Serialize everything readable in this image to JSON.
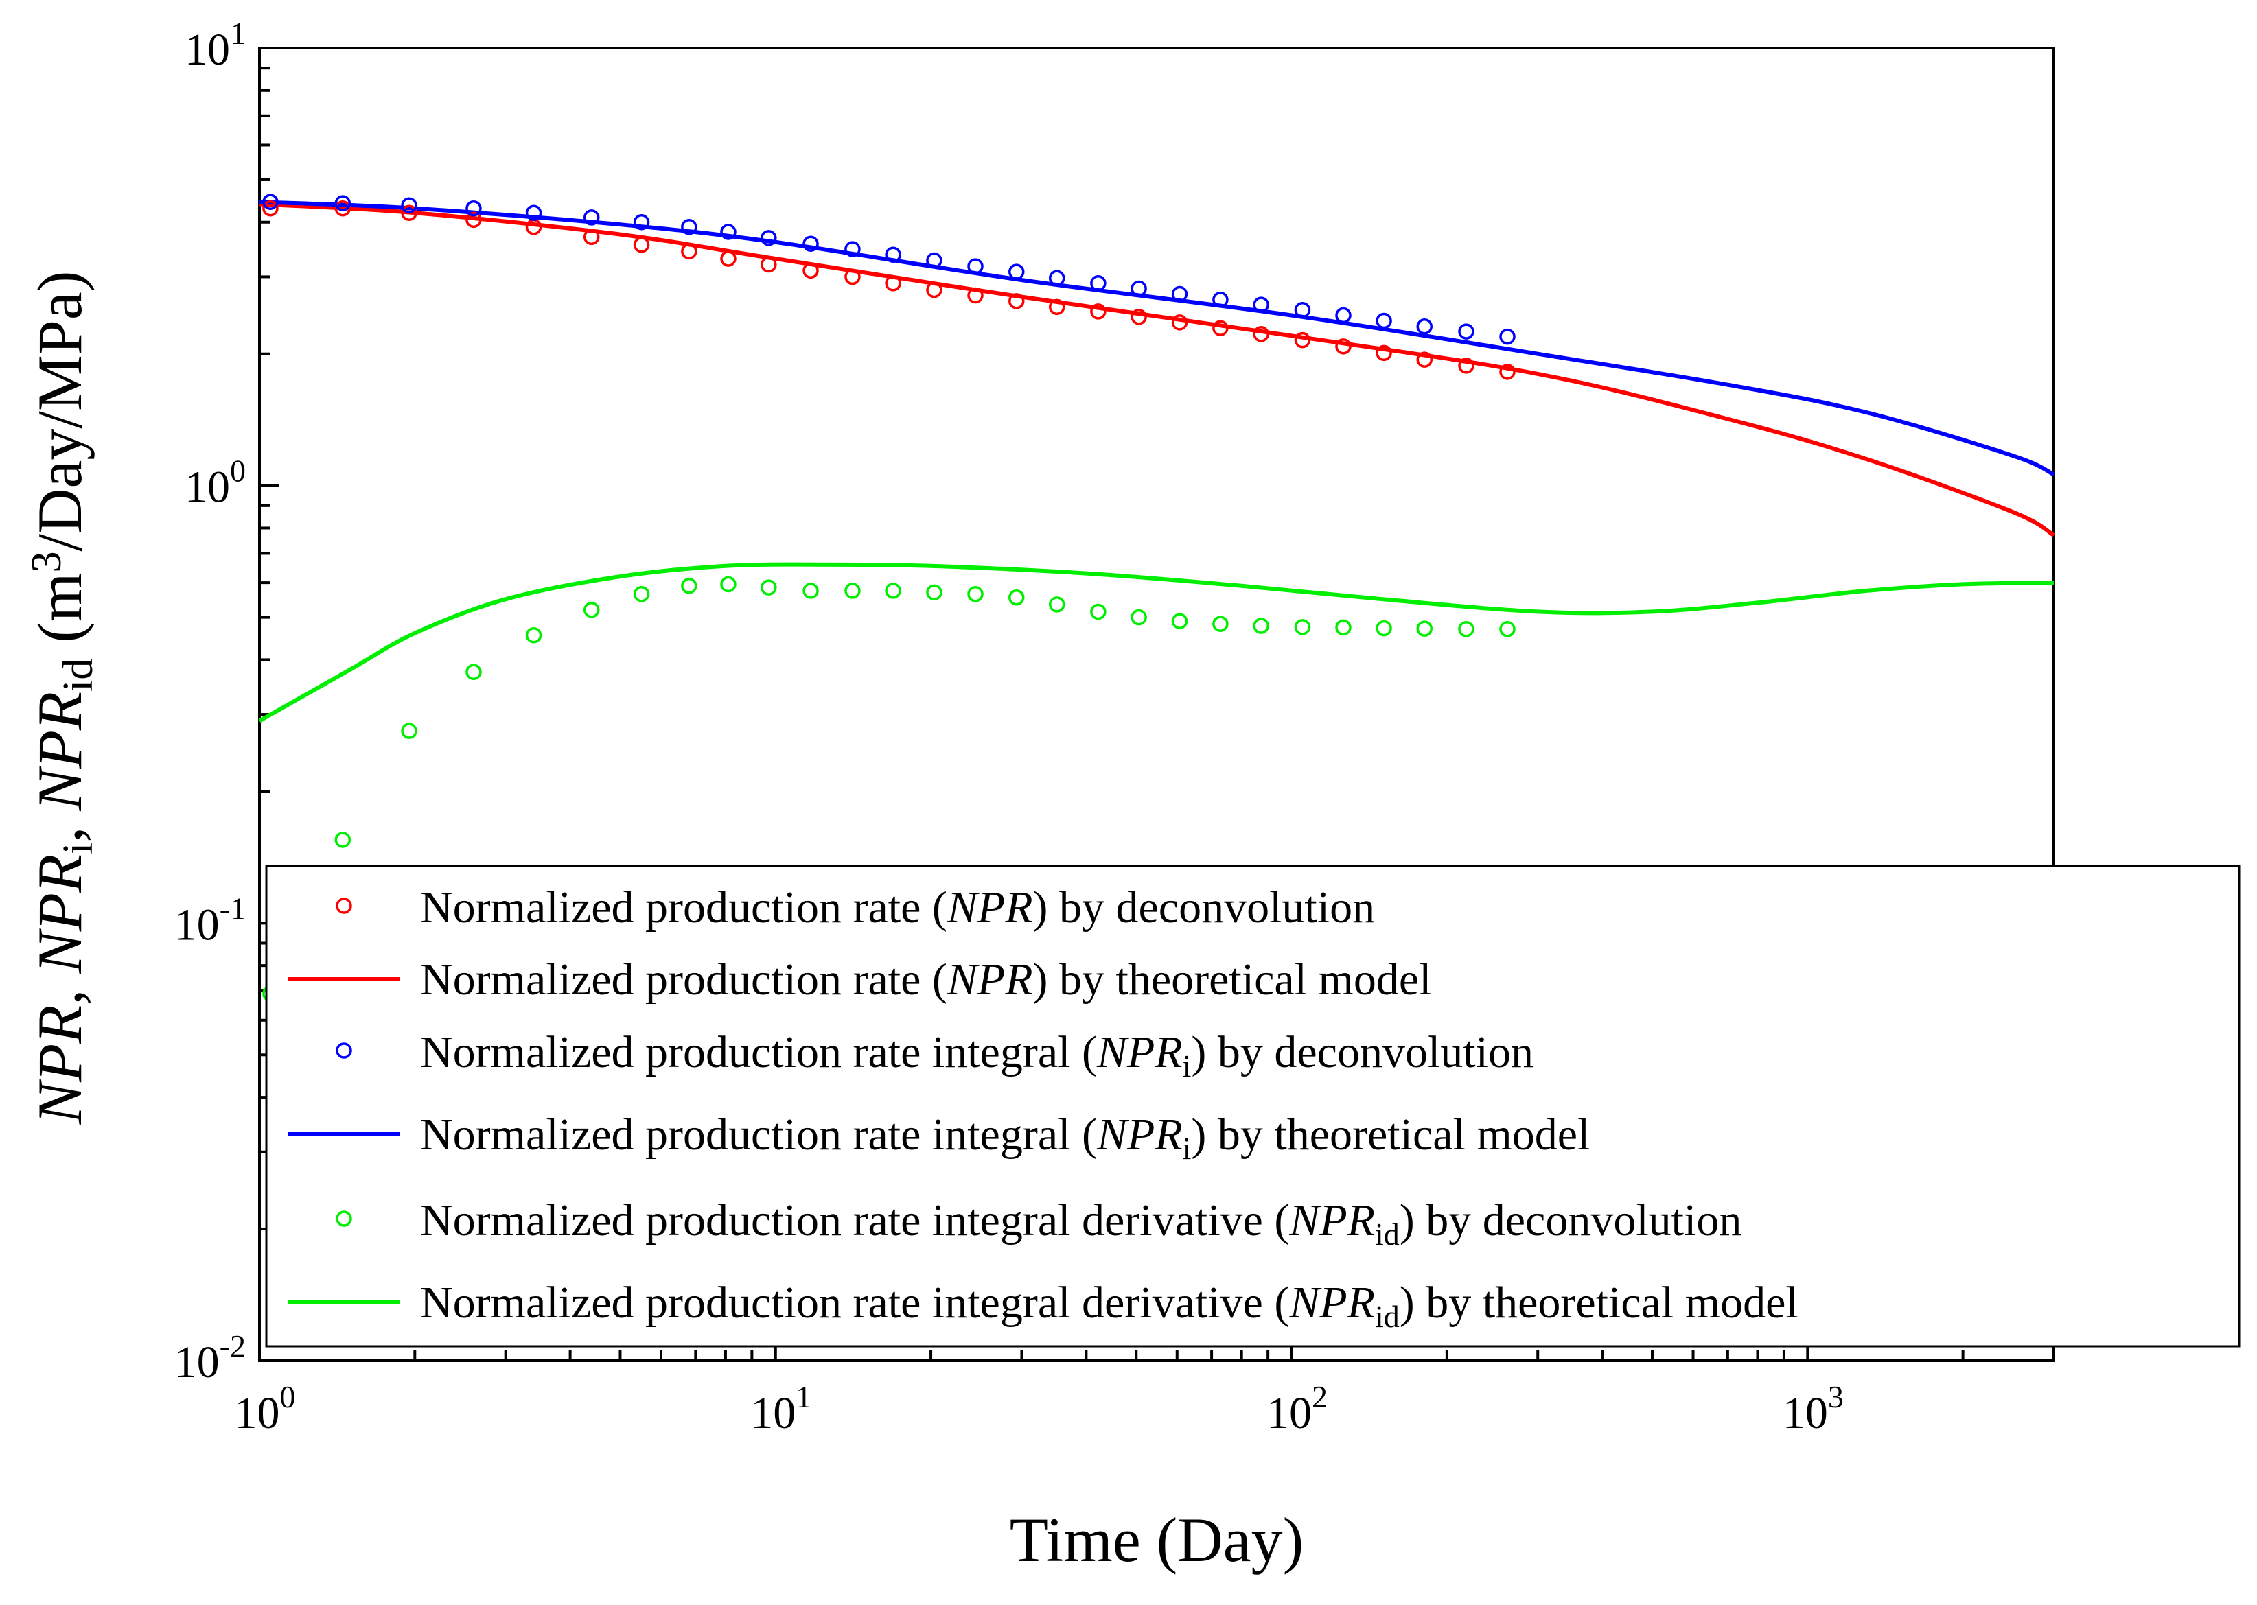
{
  "chart_data": {
    "type": "line",
    "xscale": "log",
    "yscale": "log",
    "xlim": [
      1,
      3000
    ],
    "ylim": [
      0.01,
      10
    ],
    "x_ticks": [
      {
        "value": 1,
        "base": "10",
        "exp": "0"
      },
      {
        "value": 10,
        "base": "10",
        "exp": "1"
      },
      {
        "value": 100,
        "base": "10",
        "exp": "2"
      },
      {
        "value": 1000,
        "base": "10",
        "exp": "3"
      }
    ],
    "y_ticks": [
      {
        "value": 0.01,
        "base": "10",
        "exp": "-2"
      },
      {
        "value": 0.1,
        "base": "10",
        "exp": "-1"
      },
      {
        "value": 1,
        "base": "10",
        "exp": "0"
      },
      {
        "value": 10,
        "base": "10",
        "exp": "1"
      }
    ],
    "xlabel": "Time (Day)",
    "ylabel": {
      "p1": "NPR",
      "p2": ", ",
      "p3": "NPR",
      "p4": "i",
      "p5": ", ",
      "p6": "NPR",
      "p7": "id",
      "p8": " (m",
      "p9": "3",
      "p10": "/Day/MPa)"
    },
    "legend_position": "lower-right",
    "series": [
      {
        "id": "npr_dec",
        "kind": "scatter",
        "color": "#ff0000",
        "legend": {
          "t1": "Normalized production rate  (",
          "t2": "NPR",
          "t3": "",
          "t4": ") by deconvolution"
        },
        "points": [
          [
            1.05,
            4.3
          ],
          [
            1.45,
            4.3
          ],
          [
            1.95,
            4.2
          ],
          [
            2.6,
            4.05
          ],
          [
            3.4,
            3.9
          ],
          [
            4.4,
            3.7
          ],
          [
            5.5,
            3.55
          ],
          [
            6.8,
            3.43
          ],
          [
            8.1,
            3.3
          ],
          [
            9.7,
            3.2
          ],
          [
            11.7,
            3.1
          ],
          [
            14.1,
            3.0
          ],
          [
            16.9,
            2.9
          ],
          [
            20.3,
            2.8
          ],
          [
            24.4,
            2.72
          ],
          [
            29.3,
            2.64
          ],
          [
            35.1,
            2.56
          ],
          [
            42.2,
            2.5
          ],
          [
            50.6,
            2.43
          ],
          [
            60.7,
            2.36
          ],
          [
            72.8,
            2.29
          ],
          [
            87.3,
            2.22
          ],
          [
            105,
            2.15
          ],
          [
            126,
            2.08
          ],
          [
            151,
            2.01
          ],
          [
            181,
            1.94
          ],
          [
            218,
            1.88
          ],
          [
            262,
            1.82
          ]
        ]
      },
      {
        "id": "npr_model",
        "kind": "line",
        "color": "#ff0000",
        "legend": {
          "t1": "Normalized production rate  (",
          "t2": "NPR",
          "t3": "",
          "t4": ") by  theoretical  model"
        },
        "points": [
          [
            1,
            4.4
          ],
          [
            2,
            4.2
          ],
          [
            5,
            3.75
          ],
          [
            10,
            3.3
          ],
          [
            30,
            2.7
          ],
          [
            100,
            2.2
          ],
          [
            300,
            1.8
          ],
          [
            700,
            1.42
          ],
          [
            1300,
            1.15
          ],
          [
            2500,
            0.87
          ],
          [
            3000,
            0.77
          ]
        ]
      },
      {
        "id": "npri_dec",
        "kind": "scatter",
        "color": "#0000ff",
        "legend": {
          "t1": "Normalized production rate integral (",
          "t2": "NPR",
          "t3": "i",
          "t4": ") by deconvolution"
        },
        "points": [
          [
            1.05,
            4.45
          ],
          [
            1.45,
            4.42
          ],
          [
            1.95,
            4.37
          ],
          [
            2.6,
            4.3
          ],
          [
            3.4,
            4.2
          ],
          [
            4.4,
            4.1
          ],
          [
            5.5,
            4.0
          ],
          [
            6.8,
            3.9
          ],
          [
            8.1,
            3.8
          ],
          [
            9.7,
            3.68
          ],
          [
            11.7,
            3.57
          ],
          [
            14.1,
            3.47
          ],
          [
            16.9,
            3.37
          ],
          [
            20.3,
            3.27
          ],
          [
            24.4,
            3.17
          ],
          [
            29.3,
            3.08
          ],
          [
            35.1,
            2.98
          ],
          [
            42.2,
            2.9
          ],
          [
            50.6,
            2.82
          ],
          [
            60.7,
            2.74
          ],
          [
            72.8,
            2.66
          ],
          [
            87.3,
            2.59
          ],
          [
            105,
            2.52
          ],
          [
            126,
            2.45
          ],
          [
            151,
            2.38
          ],
          [
            181,
            2.31
          ],
          [
            218,
            2.25
          ],
          [
            262,
            2.19
          ]
        ]
      },
      {
        "id": "npri_model",
        "kind": "line",
        "color": "#0000ff",
        "legend": {
          "t1": "Normalized production rate integral (",
          "t2": "NPR",
          "t3": "i",
          "t4": ") by theoretical  model"
        },
        "points": [
          [
            1,
            4.45
          ],
          [
            2,
            4.3
          ],
          [
            5,
            3.95
          ],
          [
            10,
            3.6
          ],
          [
            30,
            2.95
          ],
          [
            100,
            2.45
          ],
          [
            300,
            2.0
          ],
          [
            700,
            1.7
          ],
          [
            1300,
            1.47
          ],
          [
            2500,
            1.17
          ],
          [
            3000,
            1.06
          ]
        ]
      },
      {
        "id": "nprid_dec",
        "kind": "scatter",
        "color": "#00ee00",
        "legend": {
          "t1": "Normalized production rate integral  derivative (",
          "t2": "NPR",
          "t3": "id",
          "t4": ") by deconvolution"
        },
        "points": [
          [
            1.05,
            0.069
          ],
          [
            1.45,
            0.155
          ],
          [
            1.95,
            0.275
          ],
          [
            2.6,
            0.375
          ],
          [
            3.4,
            0.455
          ],
          [
            4.4,
            0.52
          ],
          [
            5.5,
            0.565
          ],
          [
            6.8,
            0.59
          ],
          [
            8.1,
            0.595
          ],
          [
            9.7,
            0.585
          ],
          [
            11.7,
            0.575
          ],
          [
            14.1,
            0.575
          ],
          [
            16.9,
            0.575
          ],
          [
            20.3,
            0.57
          ],
          [
            24.4,
            0.565
          ],
          [
            29.3,
            0.555
          ],
          [
            35.1,
            0.535
          ],
          [
            42.2,
            0.515
          ],
          [
            50.6,
            0.5
          ],
          [
            60.7,
            0.49
          ],
          [
            72.8,
            0.483
          ],
          [
            87.3,
            0.478
          ],
          [
            105,
            0.475
          ],
          [
            126,
            0.474
          ],
          [
            151,
            0.472
          ],
          [
            181,
            0.471
          ],
          [
            218,
            0.47
          ],
          [
            262,
            0.47
          ]
        ]
      },
      {
        "id": "nprid_model",
        "kind": "line",
        "color": "#00ee00",
        "legend": {
          "t1": "Normalized production rate integral  derivative (",
          "t2": "NPR",
          "t3": "id",
          "t4": ") by  theoretical  model"
        },
        "points": [
          [
            1,
            0.29
          ],
          [
            1.5,
            0.38
          ],
          [
            2,
            0.46
          ],
          [
            3,
            0.55
          ],
          [
            5,
            0.62
          ],
          [
            8,
            0.655
          ],
          [
            12,
            0.66
          ],
          [
            20,
            0.655
          ],
          [
            40,
            0.63
          ],
          [
            80,
            0.59
          ],
          [
            150,
            0.55
          ],
          [
            300,
            0.515
          ],
          [
            500,
            0.515
          ],
          [
            800,
            0.54
          ],
          [
            1300,
            0.575
          ],
          [
            2000,
            0.595
          ],
          [
            3000,
            0.6
          ]
        ]
      }
    ]
  }
}
